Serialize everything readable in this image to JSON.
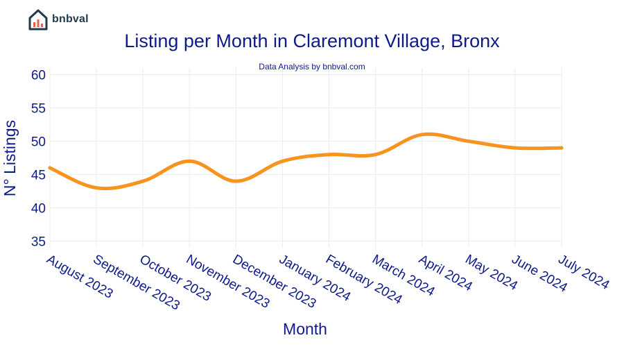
{
  "brand": {
    "name": "bnbval"
  },
  "colors": {
    "line": "#f7931e",
    "text": "#0d1a8a",
    "grid": "#ececec",
    "logo_dark": "#1f3a4d",
    "logo_accent": "#e8604c"
  },
  "chart_data": {
    "type": "line",
    "title": "Listing per Month in Claremont Village, Bronx",
    "subtitle": "Data Analysis by bnbval.com",
    "xlabel": "Month",
    "ylabel": "N° Listings",
    "categories": [
      "August 2023",
      "September 2023",
      "October 2023",
      "November 2023",
      "December 2023",
      "January 2024",
      "February 2024",
      "March 2024",
      "April 2024",
      "May 2024",
      "June 2024",
      "July 2024"
    ],
    "values": [
      46,
      43,
      44,
      47,
      44,
      47,
      48,
      48,
      51,
      50,
      49,
      49
    ],
    "yticks": [
      35,
      40,
      45,
      50,
      55,
      60
    ],
    "ylim": [
      34,
      61
    ],
    "grid": true,
    "legend": "none"
  }
}
